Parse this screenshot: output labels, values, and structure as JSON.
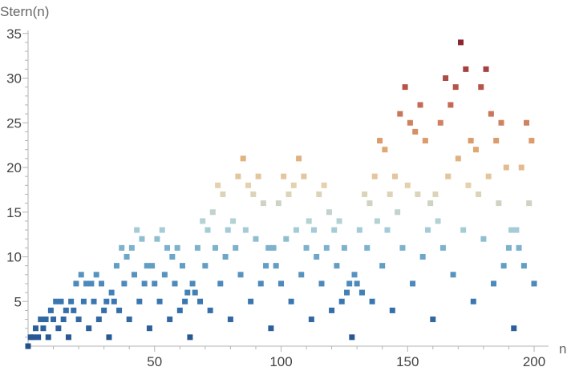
{
  "chart_data": {
    "type": "scatter",
    "title": "",
    "xlabel": "n",
    "ylabel": "Stern(n)",
    "xlim": [
      0,
      200
    ],
    "ylim": [
      0,
      36
    ],
    "xticks": [
      50,
      100,
      150,
      200
    ],
    "yticks": [
      5,
      10,
      15,
      20,
      25,
      30,
      35
    ],
    "grid": false,
    "legend": "none",
    "x": [
      0,
      1,
      2,
      3,
      4,
      5,
      6,
      7,
      8,
      9,
      10,
      11,
      12,
      13,
      14,
      15,
      16,
      17,
      18,
      19,
      20,
      21,
      22,
      23,
      24,
      25,
      26,
      27,
      28,
      29,
      30,
      31,
      32,
      33,
      34,
      35,
      36,
      37,
      38,
      39,
      40,
      41,
      42,
      43,
      44,
      45,
      46,
      47,
      48,
      49,
      50,
      51,
      52,
      53,
      54,
      55,
      56,
      57,
      58,
      59,
      60,
      61,
      62,
      63,
      64,
      65,
      66,
      67,
      68,
      69,
      70,
      71,
      72,
      73,
      74,
      75,
      76,
      77,
      78,
      79,
      80,
      81,
      82,
      83,
      84,
      85,
      86,
      87,
      88,
      89,
      90,
      91,
      92,
      93,
      94,
      95,
      96,
      97,
      98,
      99,
      100,
      101,
      102,
      103,
      104,
      105,
      106,
      107,
      108,
      109,
      110,
      111,
      112,
      113,
      114,
      115,
      116,
      117,
      118,
      119,
      120,
      121,
      122,
      123,
      124,
      125,
      126,
      127,
      128,
      129,
      130,
      131,
      132,
      133,
      134,
      135,
      136,
      137,
      138,
      139,
      140,
      141,
      142,
      143,
      144,
      145,
      146,
      147,
      148,
      149,
      150,
      151,
      152,
      153,
      154,
      155,
      156,
      157,
      158,
      159,
      160,
      161,
      162,
      163,
      164,
      165,
      166,
      167,
      168,
      169,
      170,
      171,
      172,
      173,
      174,
      175,
      176,
      177,
      178,
      179,
      180,
      181,
      182,
      183,
      184,
      185,
      186,
      187,
      188,
      189,
      190,
      191,
      192,
      193,
      194,
      195,
      196,
      197,
      198,
      199,
      200
    ],
    "y": [
      0,
      1,
      1,
      2,
      1,
      3,
      2,
      3,
      1,
      4,
      3,
      5,
      2,
      5,
      3,
      4,
      1,
      5,
      4,
      7,
      3,
      8,
      5,
      7,
      2,
      7,
      5,
      8,
      3,
      7,
      4,
      5,
      1,
      6,
      5,
      9,
      4,
      11,
      7,
      10,
      3,
      11,
      8,
      13,
      5,
      12,
      7,
      9,
      2,
      9,
      7,
      12,
      5,
      13,
      8,
      11,
      3,
      10,
      7,
      11,
      4,
      9,
      5,
      6,
      1,
      7,
      6,
      11,
      5,
      14,
      9,
      13,
      4,
      15,
      11,
      18,
      7,
      17,
      10,
      13,
      3,
      14,
      11,
      19,
      8,
      21,
      13,
      18,
      5,
      17,
      12,
      19,
      7,
      16,
      9,
      11,
      2,
      11,
      9,
      16,
      7,
      19,
      12,
      17,
      5,
      18,
      13,
      21,
      8,
      19,
      11,
      14,
      3,
      13,
      10,
      17,
      7,
      18,
      11,
      15,
      4,
      13,
      9,
      14,
      5,
      11,
      6,
      7,
      1,
      8,
      7,
      13,
      6,
      17,
      11,
      16,
      5,
      19,
      14,
      23,
      9,
      22,
      13,
      17,
      4,
      19,
      15,
      26,
      11,
      29,
      18,
      25,
      7,
      24,
      17,
      27,
      10,
      23,
      13,
      16,
      3,
      17,
      14,
      25,
      11,
      30,
      19,
      27,
      8,
      29,
      21,
      34,
      13,
      31,
      18,
      23,
      5,
      22,
      17,
      29,
      12,
      31,
      19,
      26,
      7,
      23,
      16,
      25,
      9,
      20,
      11,
      13,
      2,
      13,
      11,
      20,
      9,
      25,
      16,
      23,
      7
    ]
  }
}
